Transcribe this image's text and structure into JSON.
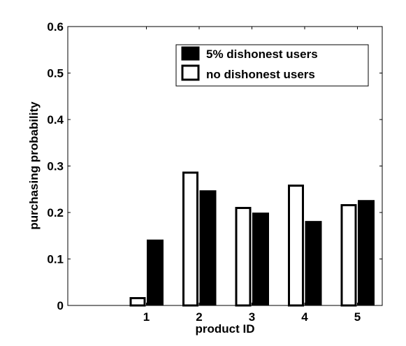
{
  "chart_data": {
    "type": "bar",
    "title": "",
    "xlabel": "product ID",
    "ylabel": "purchasing probability",
    "categories": [
      "1",
      "2",
      "3",
      "4",
      "5"
    ],
    "ylim": [
      0,
      0.6
    ],
    "yticks": [
      "0",
      "0.1",
      "0.2",
      "0.3",
      "0.4",
      "0.5",
      "0.6"
    ],
    "grid": false,
    "legend_position": "top-right",
    "series": [
      {
        "name": "no dishonest users",
        "values": [
          0.018,
          0.288,
          0.212,
          0.26,
          0.218
        ],
        "fill": "#ffffff",
        "edge": "#000000"
      },
      {
        "name": "5% dishonest users",
        "values": [
          0.141,
          0.247,
          0.199,
          0.181,
          0.226
        ],
        "fill": "#000000",
        "edge": "#000000"
      }
    ]
  }
}
